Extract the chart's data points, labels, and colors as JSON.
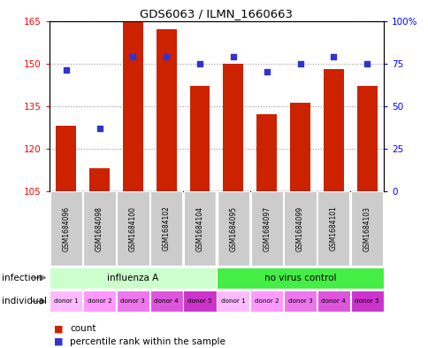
{
  "title": "GDS6063 / ILMN_1660663",
  "samples": [
    "GSM1684096",
    "GSM1684098",
    "GSM1684100",
    "GSM1684102",
    "GSM1684104",
    "GSM1684095",
    "GSM1684097",
    "GSM1684099",
    "GSM1684101",
    "GSM1684103"
  ],
  "counts": [
    128,
    113,
    165,
    162,
    142,
    150,
    132,
    136,
    148,
    142
  ],
  "percentiles": [
    71,
    37,
    79,
    79,
    75,
    79,
    70,
    75,
    79,
    75
  ],
  "ylim_left": [
    105,
    165
  ],
  "yticks_left": [
    105,
    120,
    135,
    150,
    165
  ],
  "ylim_right": [
    0,
    100
  ],
  "yticks_right": [
    0,
    25,
    50,
    75,
    100
  ],
  "ytick_labels_right": [
    "0",
    "25",
    "50",
    "75",
    "100%"
  ],
  "bar_color": "#cc2200",
  "dot_color": "#3333cc",
  "bar_width": 0.6,
  "infection_groups": [
    {
      "label": "influenza A",
      "start": 0,
      "end": 5,
      "color": "#ccffcc"
    },
    {
      "label": "no virus control",
      "start": 5,
      "end": 10,
      "color": "#44ee44"
    }
  ],
  "individual_donors": [
    {
      "label": "donor 1",
      "col": 0,
      "color": "#ffbbff"
    },
    {
      "label": "donor 2",
      "col": 1,
      "color": "#ff99ff"
    },
    {
      "label": "donor 3",
      "col": 2,
      "color": "#ee77ee"
    },
    {
      "label": "donor 4",
      "col": 3,
      "color": "#dd55dd"
    },
    {
      "label": "donor 5",
      "col": 4,
      "color": "#cc33cc"
    },
    {
      "label": "donor 1",
      "col": 5,
      "color": "#ffbbff"
    },
    {
      "label": "donor 2",
      "col": 6,
      "color": "#ff99ff"
    },
    {
      "label": "donor 3",
      "col": 7,
      "color": "#ee77ee"
    },
    {
      "label": "donor 4",
      "col": 8,
      "color": "#dd55dd"
    },
    {
      "label": "donor 5",
      "col": 9,
      "color": "#cc33cc"
    }
  ],
  "legend_count_color": "#cc2200",
  "legend_dot_color": "#3333cc",
  "grid_color": "#999999",
  "label_infection": "infection",
  "label_individual": "individual",
  "sample_row_color": "#cccccc",
  "fig_width": 4.85,
  "fig_height": 3.93,
  "dpi": 100
}
